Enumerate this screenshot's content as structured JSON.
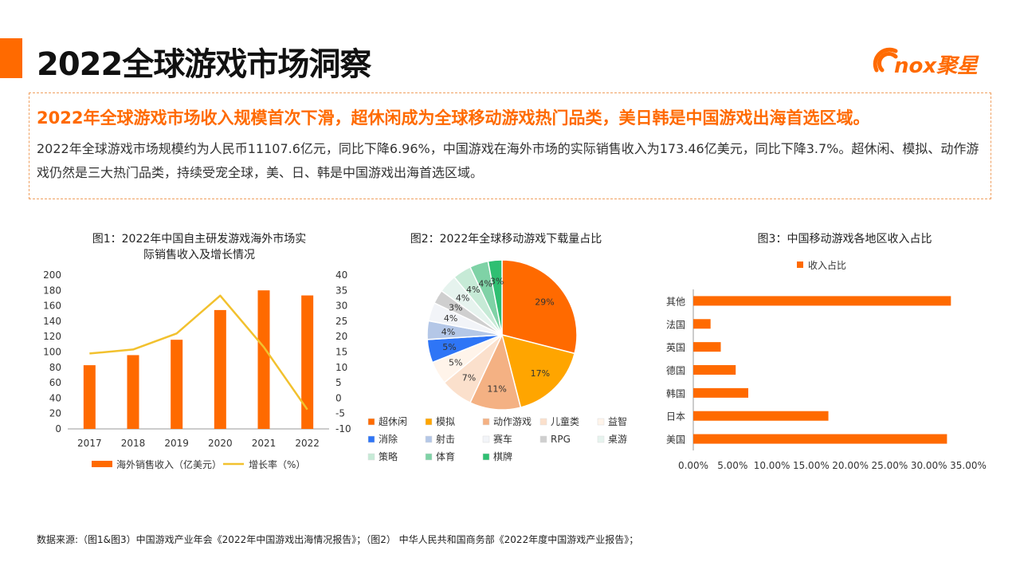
{
  "header": {
    "title": "2022全球游戏市场洞察",
    "logo_text": "nox聚星"
  },
  "summary": {
    "headline": "2022年全球游戏市场收入规模首次下滑，超休闲成为全球移动游戏热门品类，美日韩是中国游戏出海首选区域。",
    "body": "2022年全球游戏市场规模约为人民币11107.6亿元，同比下降6.96%，中国游戏在海外市场的实际销售收入为173.46亿美元，同比下降3.7%。超休闲、模拟、动作游戏仍然是三大热门品类，持续受宠全球，美、日、韩是中国游戏出海首选区域。"
  },
  "colors": {
    "accent": "#ff6a00",
    "line": "#f2c12e"
  },
  "chart_data": [
    {
      "type": "bar",
      "title": "图1：2022年中国自主研发游戏海外市场实际销售收入及增长情况",
      "title_lines": [
        "图1：2022年中国自主研发游戏海外市场实",
        "际销售收入及增长情况"
      ],
      "categories": [
        "2017",
        "2018",
        "2019",
        "2020",
        "2021",
        "2022"
      ],
      "series": [
        {
          "name": "海外销售收入（亿美元）",
          "type": "bar",
          "axis": "left",
          "values": [
            82.8,
            95.9,
            115.9,
            154.5,
            180.1,
            173.5
          ]
        },
        {
          "name": "增长率（%）",
          "type": "line",
          "axis": "right",
          "values": [
            14.5,
            15.8,
            21.0,
            33.3,
            16.6,
            -3.7
          ]
        }
      ],
      "ylim_left": [
        0,
        200
      ],
      "yticks_left": [
        "200",
        "180",
        "160",
        "140",
        "120",
        "100",
        "80",
        "60",
        "40",
        "20",
        "0"
      ],
      "ylim_right": [
        -10,
        40
      ],
      "yticks_right": [
        "40",
        "35",
        "30",
        "25",
        "20",
        "15",
        "10",
        "5",
        "0",
        "-5",
        "-10"
      ],
      "legend": "bottom"
    },
    {
      "type": "pie",
      "title": "图2：2022年全球移动游戏下载量占比",
      "slices": [
        {
          "label": "超休闲",
          "value": 29,
          "text": "29%",
          "color": "#ff6a00"
        },
        {
          "label": "模拟",
          "value": 17,
          "text": "17%",
          "color": "#ffa500"
        },
        {
          "label": "动作游戏",
          "value": 11,
          "text": "11%",
          "color": "#f4b183"
        },
        {
          "label": "儿童类",
          "value": 7,
          "text": "7%",
          "color": "#fbe0cc"
        },
        {
          "label": "益智",
          "value": 5,
          "text": "5%",
          "color": "#fff4ea"
        },
        {
          "label": "消除",
          "value": 5,
          "text": "5%",
          "color": "#2e75f6"
        },
        {
          "label": "射击",
          "value": 4,
          "text": "4%",
          "color": "#b4c7e7"
        },
        {
          "label": "赛车",
          "value": 4,
          "text": "4%",
          "color": "#f2f4f8"
        },
        {
          "label": "RPG",
          "value": 3,
          "text": "3%",
          "color": "#cfcfcf"
        },
        {
          "label": "桌游",
          "value": 4,
          "text": "4%",
          "color": "#e6f3ee"
        },
        {
          "label": "策略",
          "value": 4,
          "text": "4%",
          "color": "#c6ead6"
        },
        {
          "label": "体育",
          "value": 4,
          "text": "4%",
          "color": "#7fd2a6"
        },
        {
          "label": "棋牌",
          "value": 3,
          "text": "3%",
          "color": "#2fbf72"
        }
      ],
      "legend": "bottom"
    },
    {
      "type": "bar",
      "orientation": "horizontal",
      "title": "图3：中国移动游戏各地区收入占比",
      "series_name": "收入占比",
      "categories": [
        "其他",
        "法国",
        "英国",
        "德国",
        "韩国",
        "日本",
        "美国"
      ],
      "values": [
        32.8,
        2.2,
        3.5,
        5.4,
        7.0,
        17.2,
        32.3
      ],
      "xlim": [
        0,
        35
      ],
      "xticks": [
        "0.00%",
        "5.00%",
        "10.00%",
        "15.00%",
        "20.00%",
        "25.00%",
        "30.00%",
        "35.00%"
      ],
      "legend": "top"
    }
  ],
  "footer": "数据来源:（图1&图3）中国游戏产业年会《2022年中国游戏出海情况报告》；（图2） 中华人民共和国商务部《2022年度中国游戏产业报告》；"
}
